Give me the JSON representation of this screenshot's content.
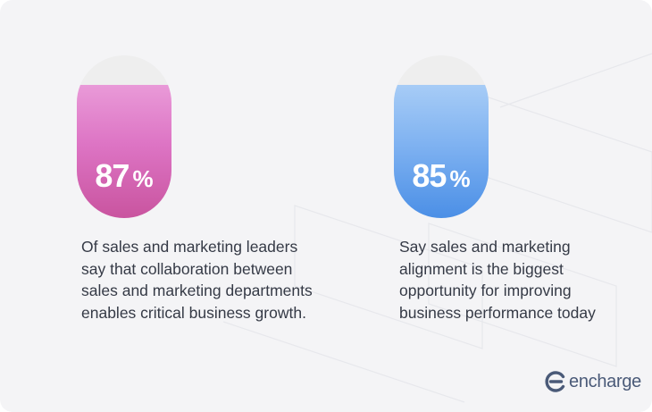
{
  "stats": [
    {
      "value": "87",
      "unit": "%",
      "fill_fraction": 0.82,
      "color": "#d765bc",
      "description": "Of sales and marketing leaders say that collaboration between sales and marketing departments enables critical business growth."
    },
    {
      "value": "85",
      "unit": "%",
      "fill_fraction": 0.82,
      "color": "#5f9eed",
      "description": "Say sales and marketing alignment is the biggest opportunity for improving business performance today"
    }
  ],
  "brand": {
    "name": "encharge",
    "icon": "encharge-logo-icon",
    "color": "#4a5a78"
  }
}
